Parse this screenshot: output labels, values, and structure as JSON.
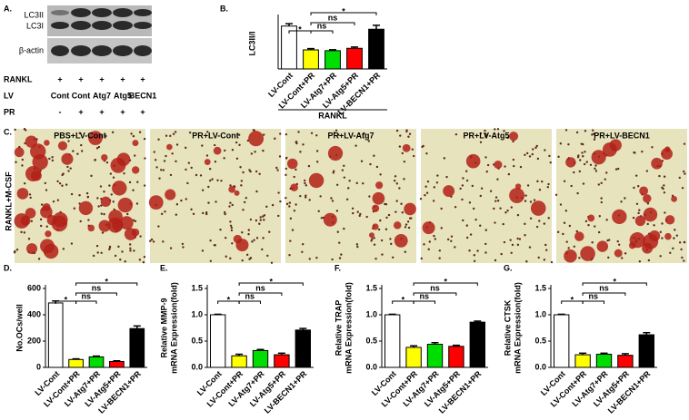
{
  "panel_a": {
    "letter": "A.",
    "bands": [
      "LC3II",
      "LC3I",
      "β-actin"
    ],
    "rows": [
      {
        "label": "RANKL",
        "cells": [
          "+",
          "+",
          "+",
          "+",
          "+"
        ]
      },
      {
        "label": "LV",
        "cells": [
          "Cont",
          "Cont",
          "Atg7",
          "Atg5",
          "BECN1"
        ]
      },
      {
        "label": "PR",
        "cells": [
          "-",
          "+",
          "+",
          "+",
          "+"
        ]
      }
    ]
  },
  "panel_c": {
    "letter": "C.",
    "row_label": "RANKL+M-CSF",
    "titles": [
      "PBS+LV-Cont",
      "PR+LV-Cont",
      "PR+LV-Atg7",
      "PR+LV-Atg5",
      "PR+LV-BECN1"
    ]
  },
  "chart_data": [
    {
      "type": "bar",
      "letter": "B.",
      "ylabel": [
        "LC3II/I"
      ],
      "group_label": "RANKL",
      "categories": [
        "LV-Cont",
        "LV-Cont+PR",
        "LV-Atg7+PR",
        "LV-Atg5+PR",
        "LV-BECN1+PR"
      ],
      "values": [
        2.7,
        1.2,
        1.15,
        1.3,
        2.5
      ],
      "errors": [
        0.15,
        0.08,
        0.06,
        0.08,
        0.25
      ],
      "colors": [
        "#ffffff",
        "#ffff00",
        "#00dd00",
        "#ff0000",
        "#000000"
      ],
      "ylim": [
        0,
        3.2
      ],
      "yticks": [],
      "annotations": [
        "*",
        "ns",
        "ns",
        "*"
      ]
    },
    {
      "type": "bar",
      "letter": "D.",
      "ylabel": [
        "No.OCs/well"
      ],
      "categories": [
        "LV-Cont",
        "LV-Cont+PR",
        "LV-Atg7+PR",
        "LV-Atg5+PR",
        "LV-BECN1+PR"
      ],
      "values": [
        490,
        60,
        80,
        45,
        295
      ],
      "errors": [
        15,
        5,
        6,
        5,
        20
      ],
      "colors": [
        "#ffffff",
        "#ffff00",
        "#00dd00",
        "#ff0000",
        "#000000"
      ],
      "ylim": [
        0,
        600
      ],
      "yticks": [
        0,
        200,
        400,
        600
      ],
      "annotations": [
        "*",
        "ns",
        "ns",
        "*"
      ]
    },
    {
      "type": "bar",
      "letter": "E.",
      "ylabel": [
        "Relative MMP-9",
        "mRNA Expression(fold)"
      ],
      "categories": [
        "LV-Cont",
        "LV-Cont+PR",
        "LV-Atg7+PR",
        "LV-Atg5+PR",
        "LV-BECN1+PR"
      ],
      "values": [
        1.0,
        0.22,
        0.32,
        0.24,
        0.71
      ],
      "errors": [
        0.01,
        0.03,
        0.02,
        0.03,
        0.03
      ],
      "colors": [
        "#ffffff",
        "#ffff00",
        "#00dd00",
        "#ff0000",
        "#000000"
      ],
      "ylim": [
        0,
        1.5
      ],
      "yticks": [
        {
          "value": 0,
          "label": "0.0"
        },
        0.5,
        {
          "value": 1,
          "label": "1.0"
        },
        1.5
      ],
      "annotations": [
        "*",
        "ns",
        "ns",
        "*"
      ]
    },
    {
      "type": "bar",
      "letter": "F.",
      "ylabel": [
        "Relative TRAP",
        "mRNA Expression(fold)"
      ],
      "categories": [
        "LV-Cont",
        "LV-Cont+PR",
        "LV-Atg7+PR",
        "LV-Atg5+PR",
        "LV-BECN1+PR"
      ],
      "values": [
        1.0,
        0.38,
        0.44,
        0.4,
        0.86
      ],
      "errors": [
        0.01,
        0.03,
        0.03,
        0.02,
        0.02
      ],
      "colors": [
        "#ffffff",
        "#ffff00",
        "#00dd00",
        "#ff0000",
        "#000000"
      ],
      "ylim": [
        0,
        1.5
      ],
      "yticks": [
        {
          "value": 0,
          "label": "0.0"
        },
        0.5,
        {
          "value": 1,
          "label": "1.0"
        },
        1.5
      ],
      "annotations": [
        "*",
        "ns",
        "ns",
        "*"
      ]
    },
    {
      "type": "bar",
      "letter": "G.",
      "ylabel": [
        "Relative CTSK",
        "mRNA Expression(fold)"
      ],
      "categories": [
        "LV-Cont",
        "LV-Cont+PR",
        "LV-Atg7+PR",
        "LV-Atg5+PR",
        "LV-BECN1+PR"
      ],
      "values": [
        1.0,
        0.24,
        0.25,
        0.23,
        0.62
      ],
      "errors": [
        0.01,
        0.03,
        0.02,
        0.03,
        0.04
      ],
      "colors": [
        "#ffffff",
        "#ffff00",
        "#00dd00",
        "#ff0000",
        "#000000"
      ],
      "ylim": [
        0,
        1.5
      ],
      "yticks": [
        {
          "value": 0,
          "label": "0.0"
        },
        0.5,
        {
          "value": 1,
          "label": "1.0"
        },
        1.5
      ],
      "annotations": [
        "*",
        "ns",
        "ns",
        "*"
      ]
    }
  ]
}
